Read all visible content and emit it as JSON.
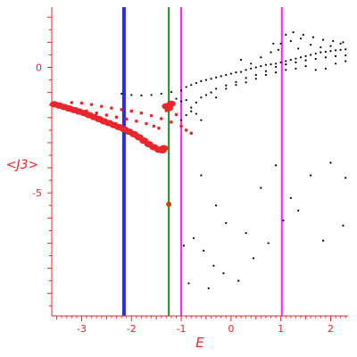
{
  "chart_data": {
    "type": "scatter",
    "title": "",
    "xlabel": "E",
    "ylabel": "<J3>",
    "xlim": [
      -3.6,
      2.35
    ],
    "ylim": [
      -9.9,
      2.4
    ],
    "x_ticks": [
      -3,
      -2,
      -1,
      0,
      1,
      2
    ],
    "y_ticks": [
      0,
      -5
    ],
    "grid": false,
    "colors": {
      "axis": "#e8262c",
      "large_points": "#e8262c",
      "dark_point": "#c04a00",
      "small_points": "#000000",
      "green_marker": "#2a9d2a"
    },
    "vertical_lines": [
      {
        "x": -2.15,
        "color": "#1f2bff"
      },
      {
        "x": -1.25,
        "color": "#1f8f1f"
      },
      {
        "x": -1.0,
        "color": "#ff1fff"
      },
      {
        "x": 1.02,
        "color": "#ff1fff"
      }
    ],
    "series": [
      {
        "marker": "large",
        "points": [
          [
            -3.55,
            -1.47
          ],
          [
            -3.45,
            -1.52
          ],
          [
            -3.35,
            -1.58
          ],
          [
            -3.25,
            -1.64
          ],
          [
            -3.15,
            -1.7
          ],
          [
            -3.05,
            -1.76
          ],
          [
            -2.95,
            -1.82
          ],
          [
            -2.85,
            -1.9
          ],
          [
            -2.75,
            -1.98
          ],
          [
            -2.65,
            -2.06
          ],
          [
            -2.55,
            -2.15
          ],
          [
            -2.45,
            -2.22
          ],
          [
            -2.35,
            -2.3
          ],
          [
            -2.25,
            -2.38
          ],
          [
            -2.15,
            -2.46
          ],
          [
            -2.05,
            -2.56
          ],
          [
            -1.95,
            -2.66
          ],
          [
            -1.85,
            -2.78
          ],
          [
            -1.75,
            -2.92
          ],
          [
            -1.65,
            -3.06
          ],
          [
            -1.55,
            -3.18
          ],
          [
            -1.45,
            -3.28
          ],
          [
            -1.38,
            -3.3
          ],
          [
            -1.3,
            -1.55
          ],
          [
            -1.25,
            -1.62
          ],
          [
            -1.2,
            -1.45
          ],
          [
            -1.35,
            -3.22
          ]
        ]
      },
      {
        "marker": "medium",
        "points": [
          [
            -3.3,
            -1.6
          ],
          [
            -3.1,
            -1.66
          ],
          [
            -2.9,
            -1.74
          ],
          [
            -2.7,
            -1.82
          ],
          [
            -2.5,
            -1.9
          ],
          [
            -2.3,
            -1.98
          ],
          [
            -2.1,
            -2.06
          ],
          [
            -1.9,
            -2.14
          ],
          [
            -1.7,
            -2.24
          ],
          [
            -1.55,
            -2.34
          ],
          [
            -1.45,
            -2.42
          ],
          [
            -3.2,
            -1.4
          ],
          [
            -3.0,
            -1.42
          ],
          [
            -2.8,
            -1.48
          ],
          [
            -2.6,
            -1.55
          ],
          [
            -2.4,
            -1.62
          ],
          [
            -2.2,
            -1.68
          ],
          [
            -2.0,
            -1.74
          ],
          [
            -1.8,
            -1.82
          ],
          [
            -1.6,
            -1.92
          ],
          [
            -1.4,
            -2.04
          ],
          [
            -1.2,
            -2.18
          ],
          [
            -1.0,
            -2.34
          ],
          [
            -0.9,
            -2.5
          ],
          [
            -0.8,
            -2.62
          ],
          [
            -1.3,
            -1.72
          ],
          [
            -1.1,
            -1.88
          ]
        ]
      },
      {
        "marker": "small",
        "points": [
          [
            -2.2,
            -1.05
          ],
          [
            -2.0,
            -1.1
          ],
          [
            -1.8,
            -1.12
          ],
          [
            -1.6,
            -1.1
          ],
          [
            -1.4,
            -1.05
          ],
          [
            -1.2,
            -0.98
          ],
          [
            -1.0,
            -0.92
          ],
          [
            -0.9,
            -0.78
          ],
          [
            -0.8,
            -0.7
          ],
          [
            -0.7,
            -0.62
          ],
          [
            -0.6,
            -0.55
          ],
          [
            -0.5,
            -0.5
          ],
          [
            -0.4,
            -0.45
          ],
          [
            -0.3,
            -0.4
          ],
          [
            -0.2,
            -0.35
          ],
          [
            -0.1,
            -0.3
          ],
          [
            0.0,
            -0.25
          ],
          [
            0.1,
            -0.2
          ],
          [
            0.2,
            -0.18
          ],
          [
            0.3,
            -0.1
          ],
          [
            0.4,
            -0.05
          ],
          [
            0.5,
            0.0
          ],
          [
            0.6,
            0.05
          ],
          [
            0.7,
            0.1
          ],
          [
            0.8,
            0.12
          ],
          [
            0.9,
            0.15
          ],
          [
            1.0,
            0.2
          ],
          [
            1.1,
            0.25
          ],
          [
            1.2,
            0.3
          ],
          [
            1.3,
            0.35
          ],
          [
            1.4,
            0.4
          ],
          [
            1.5,
            0.45
          ],
          [
            1.6,
            0.5
          ],
          [
            1.7,
            0.55
          ],
          [
            1.8,
            0.6
          ],
          [
            1.9,
            0.62
          ],
          [
            2.0,
            0.65
          ],
          [
            2.1,
            0.68
          ],
          [
            2.2,
            0.7
          ],
          [
            2.3,
            0.72
          ],
          [
            -0.3,
            -0.85
          ],
          [
            -0.1,
            -0.72
          ],
          [
            0.1,
            -0.58
          ],
          [
            0.3,
            -0.42
          ],
          [
            0.5,
            -0.3
          ],
          [
            0.7,
            -0.15
          ],
          [
            0.9,
            0.02
          ],
          [
            1.1,
            0.12
          ],
          [
            1.3,
            0.2
          ],
          [
            1.5,
            0.28
          ],
          [
            1.7,
            0.34
          ],
          [
            1.9,
            0.4
          ],
          [
            2.1,
            0.45
          ],
          [
            2.3,
            0.48
          ],
          [
            0.2,
            0.3
          ],
          [
            0.4,
            0.15
          ],
          [
            0.6,
            0.4
          ],
          [
            0.8,
            0.6
          ],
          [
            1.0,
            0.95
          ],
          [
            1.2,
            1.05
          ],
          [
            1.4,
            1.15
          ],
          [
            1.6,
            0.9
          ],
          [
            1.8,
            0.8
          ],
          [
            2.0,
            0.85
          ],
          [
            2.2,
            0.95
          ],
          [
            2.3,
            0.25
          ],
          [
            2.1,
            0.15
          ],
          [
            1.9,
            -0.05
          ],
          [
            1.7,
            -0.1
          ],
          [
            1.5,
            0.05
          ],
          [
            1.3,
            -0.05
          ],
          [
            1.1,
            -0.1
          ],
          [
            0.9,
            -0.2
          ],
          [
            0.7,
            -0.3
          ],
          [
            0.5,
            -0.45
          ],
          [
            0.3,
            -0.6
          ],
          [
            0.1,
            -0.7
          ],
          [
            -0.1,
            -0.85
          ],
          [
            1.1,
            1.3
          ],
          [
            1.25,
            1.4
          ],
          [
            1.45,
            1.3
          ],
          [
            1.65,
            1.2
          ],
          [
            1.85,
            1.1
          ],
          [
            2.05,
            1.05
          ],
          [
            2.25,
            1.0
          ],
          [
            0.85,
            0.95
          ],
          [
            0.95,
            0.7
          ],
          [
            1.35,
            0.75
          ],
          [
            -0.9,
            -1.3
          ],
          [
            -0.8,
            -1.6
          ],
          [
            -0.7,
            -1.85
          ],
          [
            -0.6,
            -2.1
          ],
          [
            -1.0,
            -1.35
          ],
          [
            -1.1,
            -1.25
          ],
          [
            -0.5,
            -1.1
          ],
          [
            -0.4,
            -1.0
          ],
          [
            -0.3,
            -1.2
          ],
          [
            -0.6,
            -4.3
          ],
          [
            -0.3,
            -5.5
          ],
          [
            -0.1,
            -6.2
          ],
          [
            0.3,
            -6.6
          ],
          [
            0.6,
            -4.8
          ],
          [
            0.9,
            -3.9
          ],
          [
            1.2,
            -5.2
          ],
          [
            1.6,
            -4.3
          ],
          [
            2.0,
            -3.8
          ],
          [
            2.3,
            -4.4
          ],
          [
            -0.95,
            -7.1
          ],
          [
            -0.75,
            -6.8
          ],
          [
            -0.55,
            -7.3
          ],
          [
            -0.35,
            -7.9
          ],
          [
            -0.15,
            -8.2
          ],
          [
            0.15,
            -8.5
          ],
          [
            0.45,
            -7.6
          ],
          [
            0.75,
            -7.0
          ],
          [
            1.05,
            -6.1
          ],
          [
            1.35,
            -5.7
          ],
          [
            1.85,
            -6.9
          ],
          [
            2.25,
            -6.3
          ],
          [
            -0.85,
            -8.6
          ],
          [
            -0.45,
            -8.8
          ],
          [
            -0.9,
            -1.9
          ],
          [
            -1.0,
            -2.1
          ],
          [
            -0.8,
            -1.75
          ],
          [
            -0.7,
            -1.4
          ],
          [
            -0.6,
            -1.2
          ]
        ]
      },
      {
        "marker": "dark",
        "points": [
          [
            -1.25,
            -5.45
          ]
        ]
      }
    ]
  }
}
